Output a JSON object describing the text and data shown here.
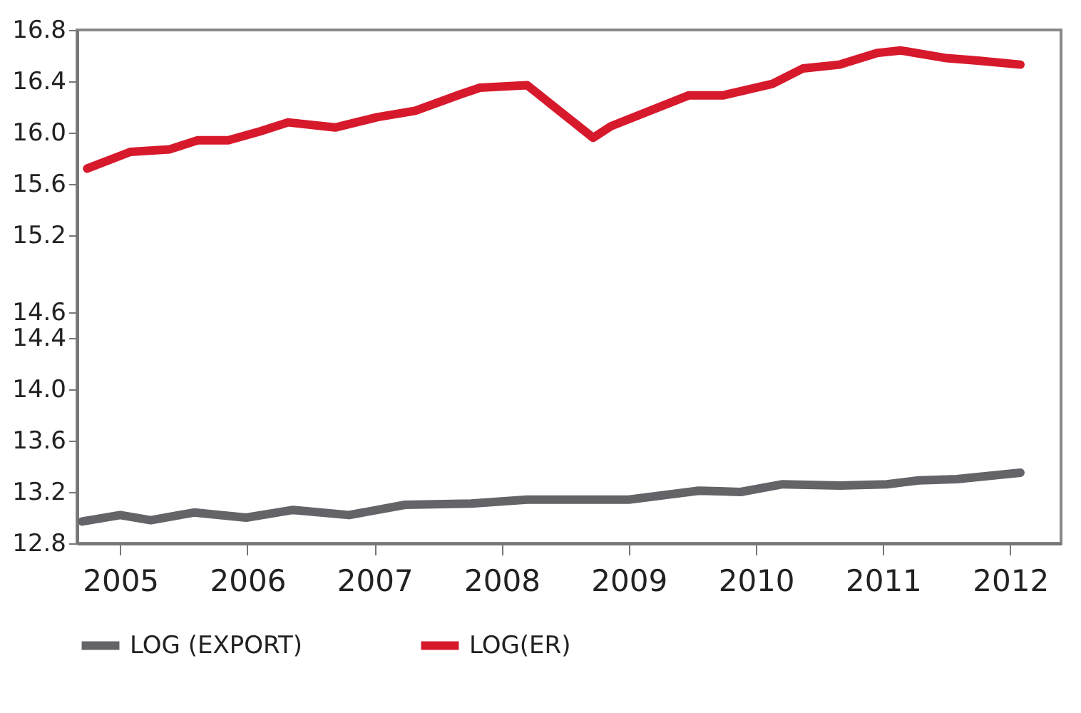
{
  "chart_data": {
    "type": "line",
    "xlim": [
      2004.66,
      2012.4
    ],
    "xticks": [
      2005,
      2006,
      2007,
      2008,
      2009,
      2010,
      2011,
      2012
    ],
    "ylim": [
      12.8,
      16.8
    ],
    "yticks": [
      12.8,
      13.2,
      13.6,
      {
        "value": 14.0,
        "label": "14.0"
      },
      14.4,
      14.6,
      15.2,
      15.6,
      {
        "value": 16.0,
        "label": "16.0"
      },
      16.4,
      16.8
    ],
    "legend": "bottom",
    "series": [
      {
        "name": "LOG (EXPORT)",
        "color": "#636368",
        "x": [
          2004.7,
          2005.0,
          2005.24,
          2005.58,
          2005.99,
          2006.36,
          2006.8,
          2007.24,
          2007.76,
          2008.2,
          2009.0,
          2009.55,
          2009.88,
          2010.21,
          2010.66,
          2011.03,
          2011.28,
          2011.58,
          2012.08
        ],
        "values": [
          12.97,
          13.02,
          12.98,
          13.04,
          13.0,
          13.06,
          13.02,
          13.1,
          13.11,
          13.14,
          13.14,
          13.21,
          13.2,
          13.26,
          13.25,
          13.26,
          13.29,
          13.3,
          13.35
        ]
      },
      {
        "name": "LOG(ER)",
        "color": "#d7192c",
        "x": [
          2004.74,
          2005.08,
          2005.39,
          2005.61,
          2005.85,
          2006.1,
          2006.32,
          2006.69,
          2007.02,
          2007.32,
          2007.68,
          2007.83,
          2008.2,
          2008.72,
          2008.86,
          2009.47,
          2009.74,
          2010.13,
          2010.37,
          2010.66,
          2010.95,
          2011.14,
          2011.5,
          2011.76,
          2012.08
        ],
        "values": [
          15.72,
          15.85,
          15.87,
          15.94,
          15.94,
          16.01,
          16.08,
          16.04,
          16.12,
          16.17,
          16.3,
          16.35,
          16.37,
          15.96,
          16.05,
          16.29,
          16.29,
          16.38,
          16.5,
          16.53,
          16.62,
          16.64,
          16.58,
          16.56,
          16.53
        ]
      }
    ]
  }
}
